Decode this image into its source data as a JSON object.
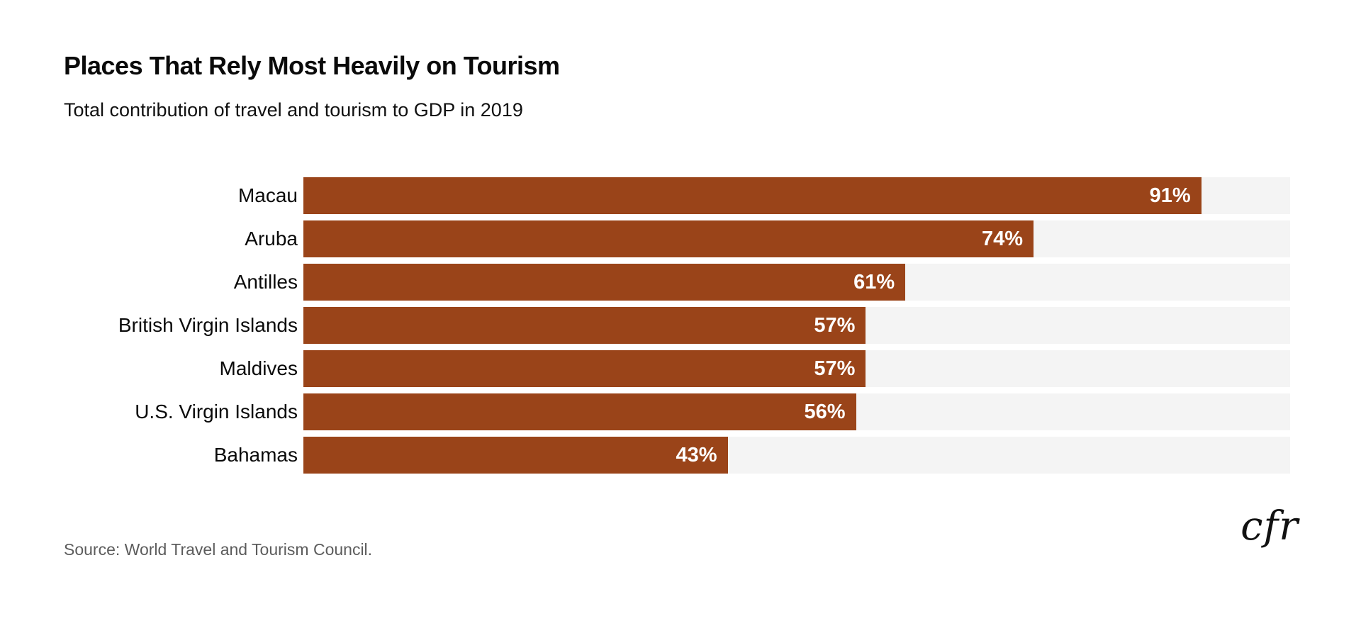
{
  "title": "Places That Rely Most Heavily on Tourism",
  "subtitle": "Total contribution of travel and tourism to GDP in 2019",
  "source": "Source: World Travel and Tourism Council.",
  "logo_text": "cfr",
  "colors": {
    "bar": "#9a4419",
    "track": "#f4f4f4",
    "value_text": "#ffffff",
    "title_text": "#0a0a0a",
    "source_text": "#5c5c5c"
  },
  "chart_data": {
    "type": "bar",
    "orientation": "horizontal",
    "title": "Places That Rely Most Heavily on Tourism",
    "subtitle": "Total contribution of travel and tourism to GDP in 2019",
    "categories": [
      "Macau",
      "Aruba",
      "Antilles",
      "British Virgin Islands",
      "Maldives",
      "U.S. Virgin Islands",
      "Bahamas"
    ],
    "values": [
      91,
      74,
      61,
      57,
      57,
      56,
      43
    ],
    "value_labels": [
      "91%",
      "74%",
      "61%",
      "57%",
      "57%",
      "56%",
      "43%"
    ],
    "unit": "%",
    "xlim": [
      0,
      100
    ],
    "grid": false,
    "legend": false,
    "value_label_position": "inside-end"
  }
}
